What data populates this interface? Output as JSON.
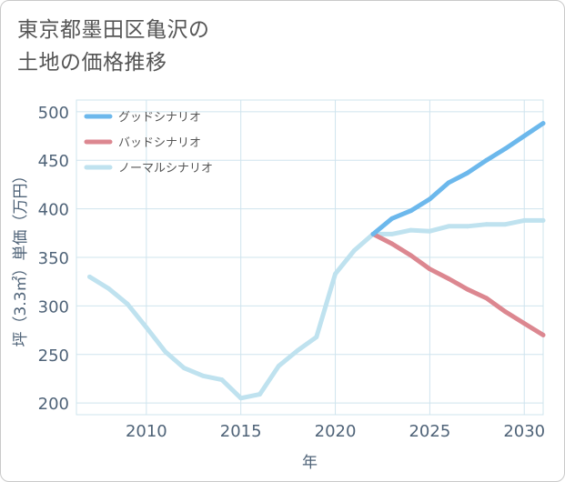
{
  "title_lines": [
    "東京都墨田区亀沢の",
    "土地の価格推移"
  ],
  "chart_data": {
    "type": "line",
    "title": "東京都墨田区亀沢の土地の価格推移",
    "xlabel": "年",
    "ylabel": "坪（3.3㎡）単価（万円）",
    "xlim": [
      2006.3,
      2031
    ],
    "ylim": [
      188,
      512
    ],
    "xticks": [
      2010,
      2015,
      2020,
      2025,
      2030
    ],
    "yticks": [
      200,
      250,
      300,
      350,
      400,
      450,
      500
    ],
    "legend_position": "top-left",
    "series": [
      {
        "name": "グッドシナリオ",
        "color": "#6cb8ec",
        "x": [
          2022,
          2023,
          2024,
          2025,
          2026,
          2027,
          2028,
          2029,
          2030,
          2031
        ],
        "values": [
          374,
          390,
          398,
          410,
          427,
          437,
          450,
          462,
          475,
          488
        ]
      },
      {
        "name": "バッドシナリオ",
        "color": "#dc8790",
        "x": [
          2022,
          2023,
          2024,
          2025,
          2026,
          2027,
          2028,
          2029,
          2030,
          2031
        ],
        "values": [
          374,
          364,
          352,
          338,
          328,
          317,
          308,
          294,
          282,
          270
        ]
      },
      {
        "name": "ノーマルシナリオ",
        "color": "#bfe2ef",
        "x": [
          2007,
          2008,
          2009,
          2010,
          2011,
          2012,
          2013,
          2014,
          2015,
          2016,
          2017,
          2018,
          2019,
          2020,
          2021,
          2022,
          2023,
          2024,
          2025,
          2026,
          2027,
          2028,
          2029,
          2030,
          2031
        ],
        "values": [
          330,
          318,
          302,
          278,
          253,
          236,
          228,
          224,
          205,
          209,
          238,
          254,
          268,
          333,
          357,
          374,
          374,
          378,
          377,
          382,
          382,
          384,
          384,
          388,
          388
        ]
      }
    ]
  },
  "colors": {
    "grid": "#cfe4ee",
    "axis_text": "#4f6378",
    "title_text": "#555555"
  }
}
